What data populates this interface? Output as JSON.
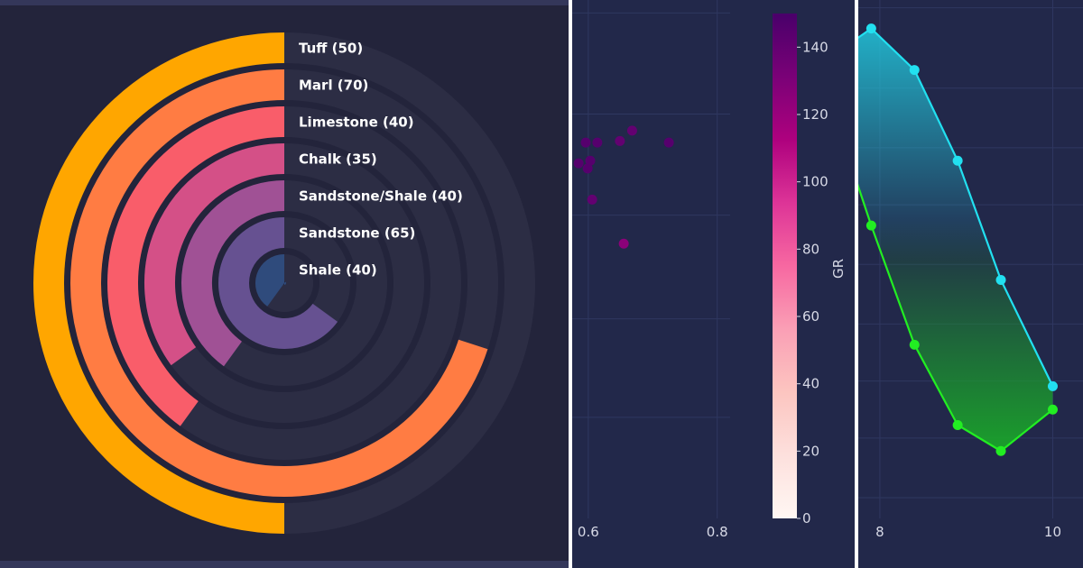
{
  "colors": {
    "radial_background": "#23243b",
    "scatter_background": "#22284a",
    "track": "#2c2d44",
    "grid": "#2f3760"
  },
  "chart_data": [
    {
      "type": "bar",
      "variant": "radial-bar",
      "title": "",
      "categories": [
        "Tuff",
        "Marl",
        "Limestone",
        "Chalk",
        "Sandstone/Shale",
        "Sandstone",
        "Shale"
      ],
      "values": [
        50,
        70,
        40,
        35,
        40,
        65,
        40
      ],
      "labels": [
        "Tuff (50)",
        "Marl (70)",
        "Limestone (40)",
        "Chalk (35)",
        "Sandstone/Shale (40)",
        "Sandstone (65)",
        "Shale (40)"
      ],
      "colors": [
        "#ffa600",
        "#ff7c43",
        "#f95d6a",
        "#d45087",
        "#a05195",
        "#665191",
        "#2f4b7c"
      ],
      "max_value": 100
    },
    {
      "type": "scatter",
      "title": "",
      "xlabel": "",
      "ylabel": "",
      "xlim": [
        0.575,
        0.82
      ],
      "ylim": [
        0,
        1
      ],
      "x_ticks": [
        0.6,
        0.8
      ],
      "x_tick_labels": [
        "0.6",
        "0.8"
      ],
      "points": [
        {
          "x": 0.585,
          "y": 0.685,
          "gr": 145
        },
        {
          "x": 0.596,
          "y": 0.725,
          "gr": 145
        },
        {
          "x": 0.599,
          "y": 0.675,
          "gr": 145
        },
        {
          "x": 0.603,
          "y": 0.69,
          "gr": 145
        },
        {
          "x": 0.606,
          "y": 0.615,
          "gr": 140
        },
        {
          "x": 0.614,
          "y": 0.725,
          "gr": 145
        },
        {
          "x": 0.649,
          "y": 0.728,
          "gr": 140
        },
        {
          "x": 0.668,
          "y": 0.748,
          "gr": 140
        },
        {
          "x": 0.725,
          "y": 0.725,
          "gr": 145
        },
        {
          "x": 0.655,
          "y": 0.53,
          "gr": 125
        }
      ],
      "colorbar": {
        "label": "GR",
        "min": 0,
        "max": 150,
        "ticks": [
          0,
          20,
          40,
          60,
          80,
          100,
          120,
          140
        ],
        "tick_labels": [
          "0",
          "20",
          "40",
          "60",
          "80",
          "100",
          "120",
          "140"
        ],
        "colormap": "RdPu",
        "color_stops": [
          "#fff7f3",
          "#fde0dd",
          "#fcc5c0",
          "#fa9fb5",
          "#f768a1",
          "#dd3497",
          "#ae017e",
          "#7a0177",
          "#49006a"
        ]
      }
    },
    {
      "type": "line",
      "variant": "filled-area",
      "title": "",
      "xlabel": "",
      "ylabel": "",
      "xlim": [
        7.75,
        10.35
      ],
      "ylim": [
        0,
        1
      ],
      "x_ticks": [
        8,
        10
      ],
      "x_tick_labels": [
        "8",
        "10"
      ],
      "series": [
        {
          "color": "#22e0f0",
          "x": [
            7.6,
            7.9,
            8.4,
            8.9,
            9.4,
            10.0
          ],
          "y": [
            0.91,
            0.945,
            0.865,
            0.69,
            0.46,
            0.255
          ]
        },
        {
          "color": "#22ee22",
          "x": [
            7.6,
            7.9,
            8.4,
            8.9,
            9.4,
            10.0
          ],
          "y": [
            0.715,
            0.565,
            0.335,
            0.18,
            0.13,
            0.21
          ]
        }
      ]
    }
  ]
}
